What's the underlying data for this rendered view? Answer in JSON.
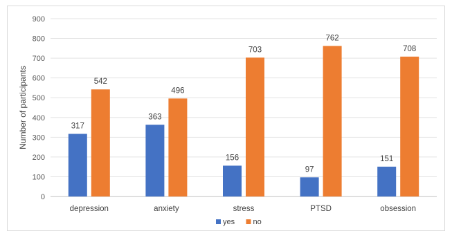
{
  "chart_data": {
    "type": "bar",
    "title": "",
    "xlabel": "",
    "ylabel": "Number of participants",
    "ylim": [
      0,
      900
    ],
    "yticks": [
      0,
      100,
      200,
      300,
      400,
      500,
      600,
      700,
      800,
      900
    ],
    "grid": true,
    "legend": "bottom",
    "categories": [
      "depression",
      "anxiety",
      "stress",
      "PTSD",
      "obsession"
    ],
    "series": [
      {
        "name": "yes",
        "color": "#4472c4",
        "values": [
          317,
          363,
          156,
          97,
          151
        ]
      },
      {
        "name": "no",
        "color": "#ed7d31",
        "values": [
          542,
          496,
          703,
          762,
          708
        ]
      }
    ]
  }
}
